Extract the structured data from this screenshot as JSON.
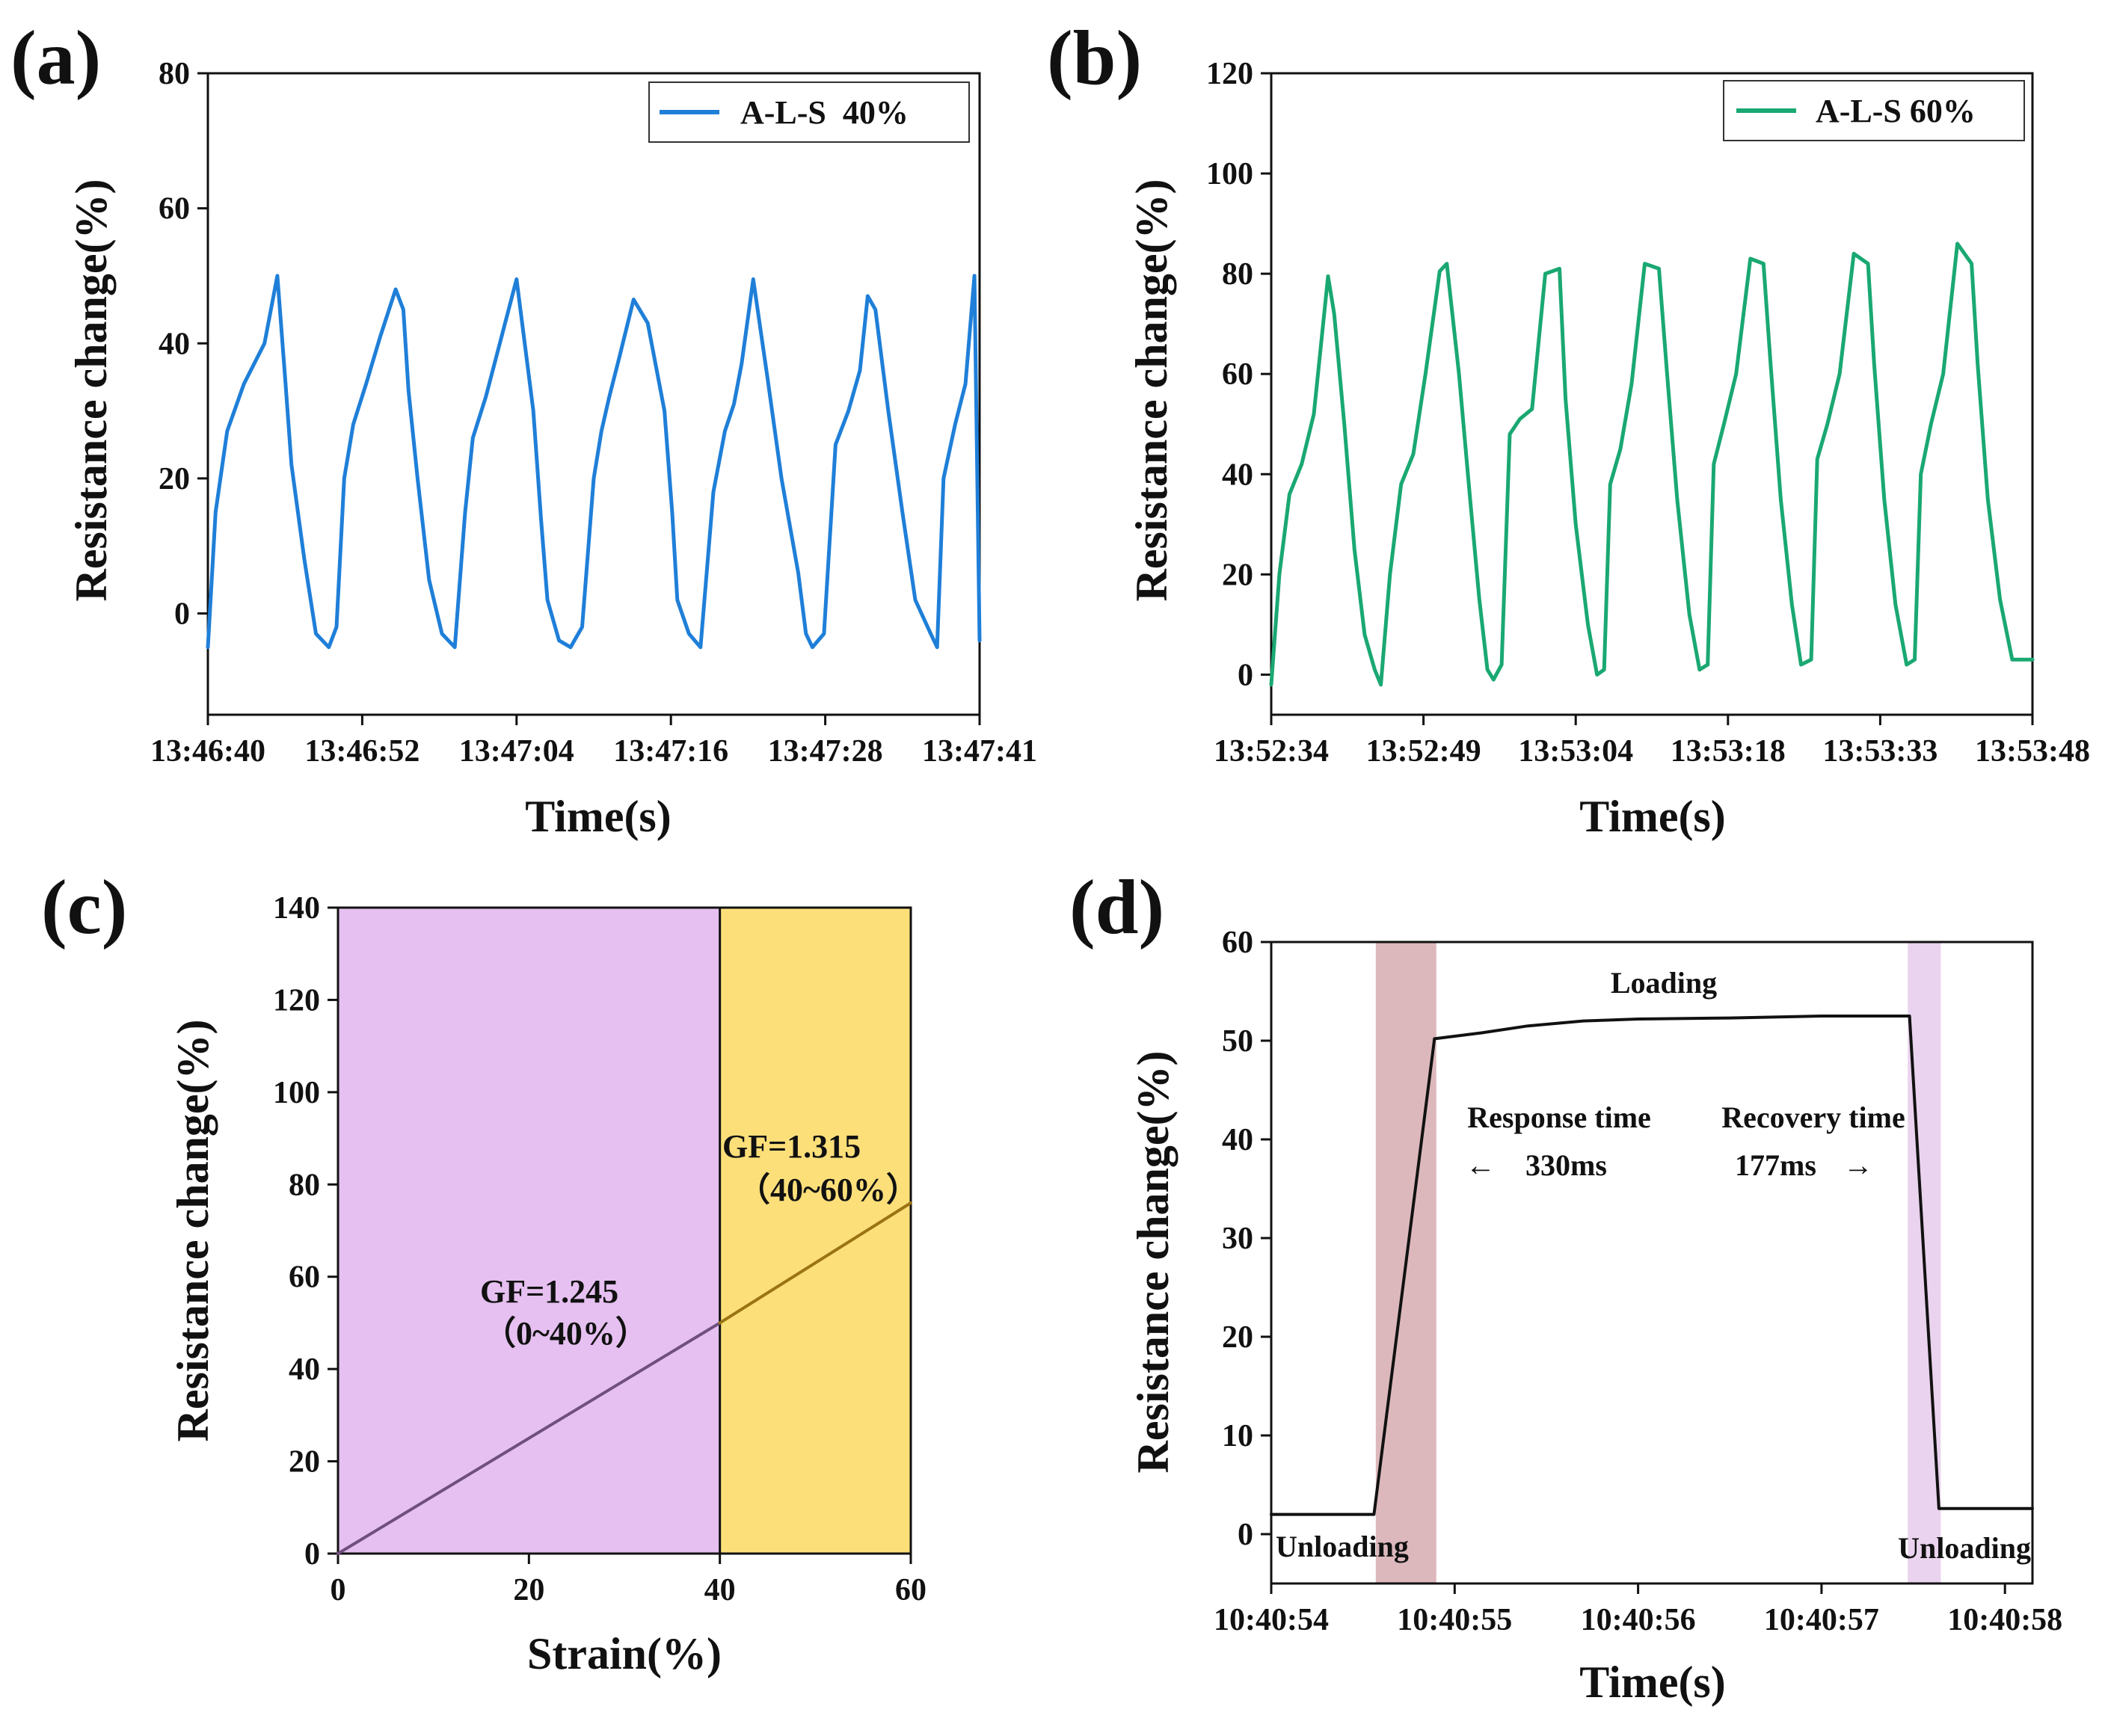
{
  "colors": {
    "series_a": "#1f7fd8",
    "series_b": "#1aa872",
    "region_c1": "#e5c0f0",
    "region_c2": "#fddf7a",
    "line_c1": "#6f4f7d",
    "line_c2": "#9a7313",
    "band_d1": "#dcb8bc",
    "band_d2": "#ead3ee",
    "line_d": "#111111"
  },
  "chart_data": [
    {
      "panel": "(a)",
      "type": "line",
      "legend": "A-L-S  40%",
      "legend_position": "top-right",
      "xlabel": "Time(s)",
      "ylabel": "Resistance change(%)",
      "xlim": [
        0,
        60
      ],
      "ylim": [
        -15,
        80
      ],
      "yticks": [
        0,
        20,
        40,
        60,
        80
      ],
      "xtick_values": [
        0,
        12,
        24,
        36,
        48,
        60
      ],
      "xtick_labels": [
        "13:46:40",
        "13:46:52",
        "13:47:04",
        "13:47:16",
        "13:47:28",
        "13:47:41"
      ],
      "series": [
        {
          "name": "A-L-S 40%",
          "x": [
            0.0,
            0.6,
            1.5,
            2.8,
            4.4,
            5.4,
            6.0,
            6.5,
            7.5,
            8.4,
            9.4,
            10.0,
            10.6,
            11.3,
            12.3,
            13.4,
            14.6,
            15.2,
            15.6,
            16.3,
            17.2,
            18.2,
            19.2,
            20.0,
            20.6,
            21.6,
            22.7,
            24.0,
            25.3,
            25.9,
            26.4,
            27.3,
            28.2,
            29.1,
            30.0,
            30.6,
            31.2,
            32.0,
            33.1,
            34.2,
            35.5,
            36.1,
            36.5,
            37.4,
            38.3,
            39.3,
            40.2,
            40.9,
            41.5,
            42.4,
            43.5,
            44.6,
            45.9,
            46.5,
            47.0,
            47.9,
            48.8,
            49.8,
            50.7,
            51.3,
            51.9,
            52.9,
            54.0,
            55.0,
            56.2,
            56.7,
            57.2,
            58.1,
            58.9,
            59.6,
            60.0
          ],
          "y": [
            -5,
            15,
            27,
            34,
            40,
            50,
            35,
            22,
            8,
            -3,
            -5,
            -2,
            20,
            28,
            34,
            41,
            48,
            45,
            33,
            20,
            5,
            -3,
            -5,
            15,
            26,
            32,
            40,
            49.5,
            30,
            14,
            2,
            -4,
            -5,
            -2,
            20,
            27,
            32,
            38,
            46.5,
            43,
            30,
            15,
            2,
            -3,
            -5,
            18,
            27,
            31,
            37,
            49.5,
            35,
            20,
            6,
            -3,
            -5,
            -3,
            25,
            30,
            36,
            47,
            45,
            30,
            15,
            2,
            -3,
            -5,
            20,
            28,
            34,
            50,
            -4
          ]
        }
      ]
    },
    {
      "panel": "(b)",
      "type": "line",
      "legend": "A-L-S 60%",
      "legend_position": "top-right",
      "xlabel": "Time(s)",
      "ylabel": "Resistance change(%)",
      "xlim": [
        0,
        75
      ],
      "ylim": [
        -8,
        120
      ],
      "yticks": [
        0,
        20,
        40,
        60,
        80,
        100,
        120
      ],
      "xtick_values": [
        0,
        15,
        30,
        45,
        60,
        75
      ],
      "xtick_labels": [
        "13:52:34",
        "13:52:49",
        "13:53:04",
        "13:53:18",
        "13:53:33",
        "13:53:48"
      ],
      "series": [
        {
          "name": "A-L-S 60%",
          "x": [
            0.0,
            0.8,
            1.8,
            3.0,
            4.2,
            5.6,
            6.2,
            7.2,
            8.2,
            9.2,
            10.2,
            10.8,
            11.7,
            12.8,
            14.0,
            15.2,
            16.6,
            17.3,
            18.5,
            19.6,
            20.5,
            21.3,
            21.9,
            22.7,
            23.5,
            24.5,
            25.7,
            27.0,
            28.4,
            29.0,
            30.0,
            31.2,
            32.1,
            32.8,
            33.4,
            34.4,
            35.5,
            36.8,
            38.2,
            39.0,
            40.0,
            41.2,
            42.2,
            43.0,
            43.6,
            44.6,
            45.8,
            47.2,
            48.5,
            49.2,
            50.2,
            51.3,
            52.2,
            53.2,
            53.8,
            54.8,
            56.0,
            57.4,
            58.8,
            59.4,
            60.4,
            61.5,
            62.6,
            63.4,
            64.0,
            65.0,
            66.2,
            67.6,
            69.0,
            69.6,
            70.6,
            71.8,
            73.0,
            74.3,
            75.0
          ],
          "y": [
            -2,
            20,
            36,
            42,
            52,
            79.5,
            72,
            50,
            25,
            8,
            1,
            -2,
            20,
            38,
            44,
            60,
            80.5,
            82,
            60,
            35,
            15,
            1,
            -1,
            2,
            48,
            51,
            53,
            80,
            81,
            55,
            30,
            10,
            0,
            1,
            38,
            45,
            58,
            82,
            81,
            60,
            35,
            12,
            1,
            2,
            42,
            50,
            60,
            83,
            82,
            62,
            35,
            14,
            2,
            3,
            43,
            50,
            60,
            84,
            82,
            62,
            35,
            14,
            2,
            3,
            40,
            50,
            60,
            86,
            82,
            62,
            35,
            15,
            3,
            3,
            3
          ]
        }
      ]
    },
    {
      "panel": "(c)",
      "type": "line",
      "xlabel": "Strain(%)",
      "ylabel": "Resistance change(%)",
      "xlim": [
        0,
        60
      ],
      "ylim": [
        0,
        140
      ],
      "xticks": [
        0,
        20,
        40,
        60
      ],
      "yticks": [
        0,
        20,
        40,
        60,
        80,
        100,
        120,
        140
      ],
      "regions": [
        {
          "from": 0,
          "to": 40
        },
        {
          "from": 40,
          "to": 60
        }
      ],
      "series": [
        {
          "name": "0~40%",
          "x": [
            0,
            40
          ],
          "y": [
            0,
            50
          ]
        },
        {
          "name": "40~60%",
          "x": [
            40,
            60
          ],
          "y": [
            50,
            76
          ]
        }
      ],
      "annotations": [
        {
          "gf": "GF=1.245",
          "range": "（0~40%）"
        },
        {
          "gf": "GF=1.315",
          "range": "（40~60%）"
        }
      ]
    },
    {
      "panel": "(d)",
      "type": "line",
      "xlabel": "Time(s)",
      "ylabel": "Resistance change(%)",
      "xlim": [
        0,
        4.15
      ],
      "ylim": [
        -5,
        60
      ],
      "yticks": [
        0,
        10,
        20,
        30,
        40,
        50,
        60
      ],
      "xtick_values": [
        0,
        1,
        2,
        3,
        4
      ],
      "xtick_labels": [
        "10:40:54",
        "10:40:55",
        "10:40:56",
        "10:40:57",
        "10:40:58"
      ],
      "bands": [
        {
          "from": 0.57,
          "to": 0.9
        },
        {
          "from": 3.47,
          "to": 3.65
        }
      ],
      "series": [
        {
          "name": "response",
          "x": [
            0,
            0.56,
            0.89,
            1.15,
            1.4,
            1.7,
            2.0,
            2.5,
            3.0,
            3.33,
            3.48,
            3.64,
            3.8,
            4.15
          ],
          "y": [
            2.0,
            2.0,
            50.2,
            50.8,
            51.5,
            52.0,
            52.2,
            52.3,
            52.5,
            52.5,
            52.5,
            2.6,
            2.6,
            2.6
          ]
        }
      ],
      "annotations": {
        "loading": "Loading",
        "unloading_left": "Unloading",
        "unloading_right": "Unloading",
        "response_title": "Response time",
        "response_value": "330ms",
        "recovery_title": "Recovery time",
        "recovery_value": "177ms",
        "arrow_left": "←",
        "arrow_right": "→"
      }
    }
  ]
}
